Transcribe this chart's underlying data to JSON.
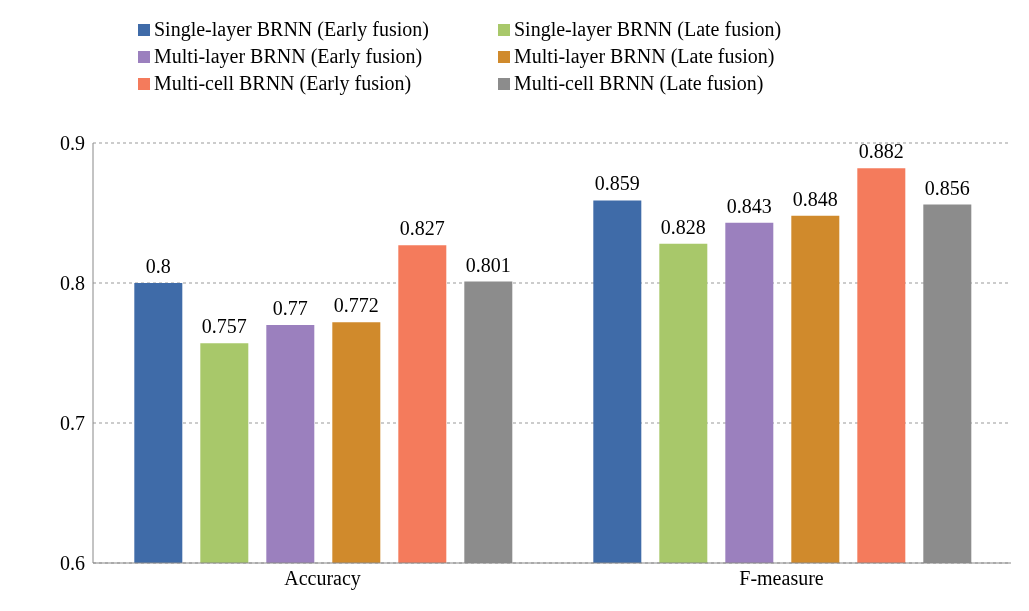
{
  "chart_data": {
    "type": "bar",
    "categories": [
      "Accuracy",
      "F-measure"
    ],
    "series": [
      {
        "name": "Single-layer BRNN (Early fusion)",
        "color": "#3f6ba8",
        "values": [
          0.8,
          0.859
        ]
      },
      {
        "name": "Single-layer BRNN (Late fusion)",
        "color": "#a8c86a",
        "values": [
          0.757,
          0.828
        ]
      },
      {
        "name": "Multi-layer BRNN (Early fusion)",
        "color": "#9b80be",
        "values": [
          0.77,
          0.843
        ]
      },
      {
        "name": "Multi-layer BRNN (Late fusion)",
        "color": "#d08a2c",
        "values": [
          0.772,
          0.848
        ]
      },
      {
        "name": "Multi-cell BRNN (Early fusion)",
        "color": "#f47b5c",
        "values": [
          0.827,
          0.882
        ]
      },
      {
        "name": "Multi-cell BRNN (Late fusion)",
        "color": "#8c8c8c",
        "values": [
          0.801,
          0.856
        ]
      }
    ],
    "ylim": [
      0.6,
      0.9
    ],
    "yticks": [
      0.6,
      0.7,
      0.8,
      0.9
    ],
    "grid": "y",
    "legend": "top",
    "data_labels": true
  }
}
